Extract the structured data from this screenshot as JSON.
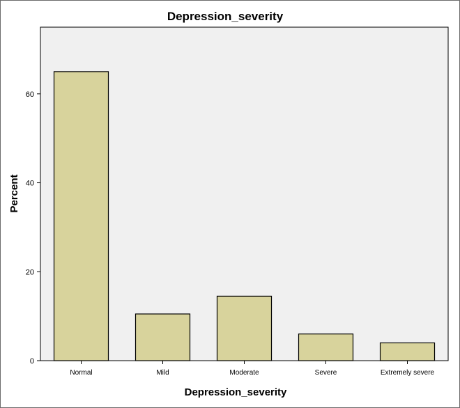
{
  "chart_data": {
    "type": "bar",
    "title": "Depression_severity",
    "xlabel": "Depression_severity",
    "ylabel": "Percent",
    "categories": [
      "Normal",
      "Mild",
      "Moderate",
      "Severe",
      "Extremely severe"
    ],
    "values": [
      65.0,
      10.5,
      14.5,
      6.0,
      4.0
    ],
    "ylim": [
      0,
      75
    ],
    "yticks": [
      0,
      20,
      40,
      60
    ],
    "grid": false,
    "colors": {
      "bar_fill": "#d8d39c",
      "bar_stroke": "#000000",
      "plot_background": "#f0f0f0"
    }
  }
}
